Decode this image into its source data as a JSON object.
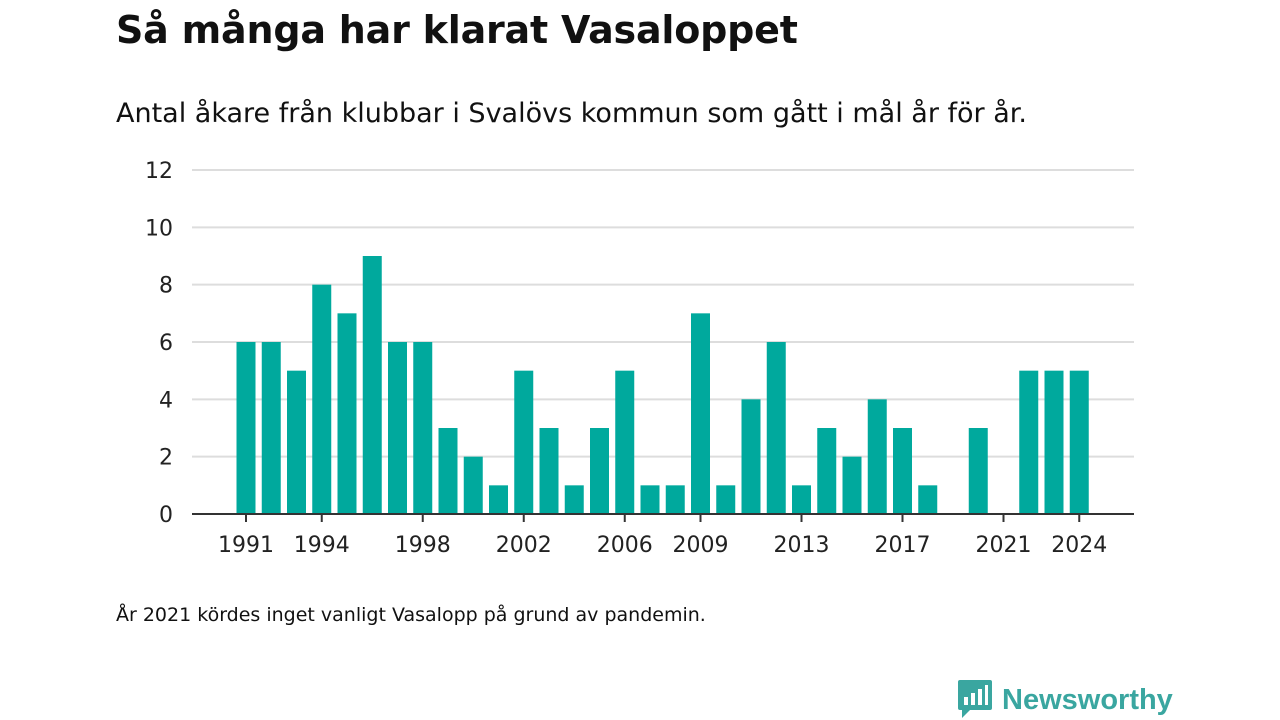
{
  "title": "Så många har klarat Vasaloppet",
  "subtitle": "Antal åkare från klubbar i Svalövs kommun som gått i mål år för år.",
  "note": "År 2021 kördes inget vanligt Vasalopp på grund av pandemin.",
  "brand": {
    "name": "Newsworthy",
    "color": "#3aa6a0",
    "icon": "newsworthy-logo-icon"
  },
  "colors": {
    "bar": "#00a99d",
    "grid": "#dddddd",
    "axis": "#333333",
    "text": "#222222"
  },
  "chart_data": {
    "type": "bar",
    "x": [
      1991,
      1992,
      1993,
      1994,
      1995,
      1996,
      1997,
      1998,
      1999,
      2000,
      2001,
      2002,
      2003,
      2004,
      2005,
      2006,
      2007,
      2008,
      2009,
      2010,
      2011,
      2012,
      2013,
      2014,
      2015,
      2016,
      2017,
      2018,
      2019,
      2020,
      2021,
      2022,
      2023,
      2024
    ],
    "values": [
      6,
      6,
      5,
      8,
      7,
      9,
      6,
      6,
      3,
      2,
      1,
      5,
      3,
      1,
      3,
      5,
      1,
      1,
      7,
      1,
      4,
      6,
      1,
      3,
      2,
      4,
      3,
      1,
      0,
      3,
      0,
      5,
      5,
      5
    ],
    "x_tick_labels": [
      "1991",
      "1994",
      "1998",
      "2002",
      "2006",
      "2009",
      "2013",
      "2017",
      "2021",
      "2024"
    ],
    "y_tick_labels": [
      "0",
      "2",
      "4",
      "6",
      "8",
      "10",
      "12"
    ],
    "ylim": [
      0,
      12
    ],
    "grid": true,
    "xlabel": "",
    "ylabel": ""
  }
}
